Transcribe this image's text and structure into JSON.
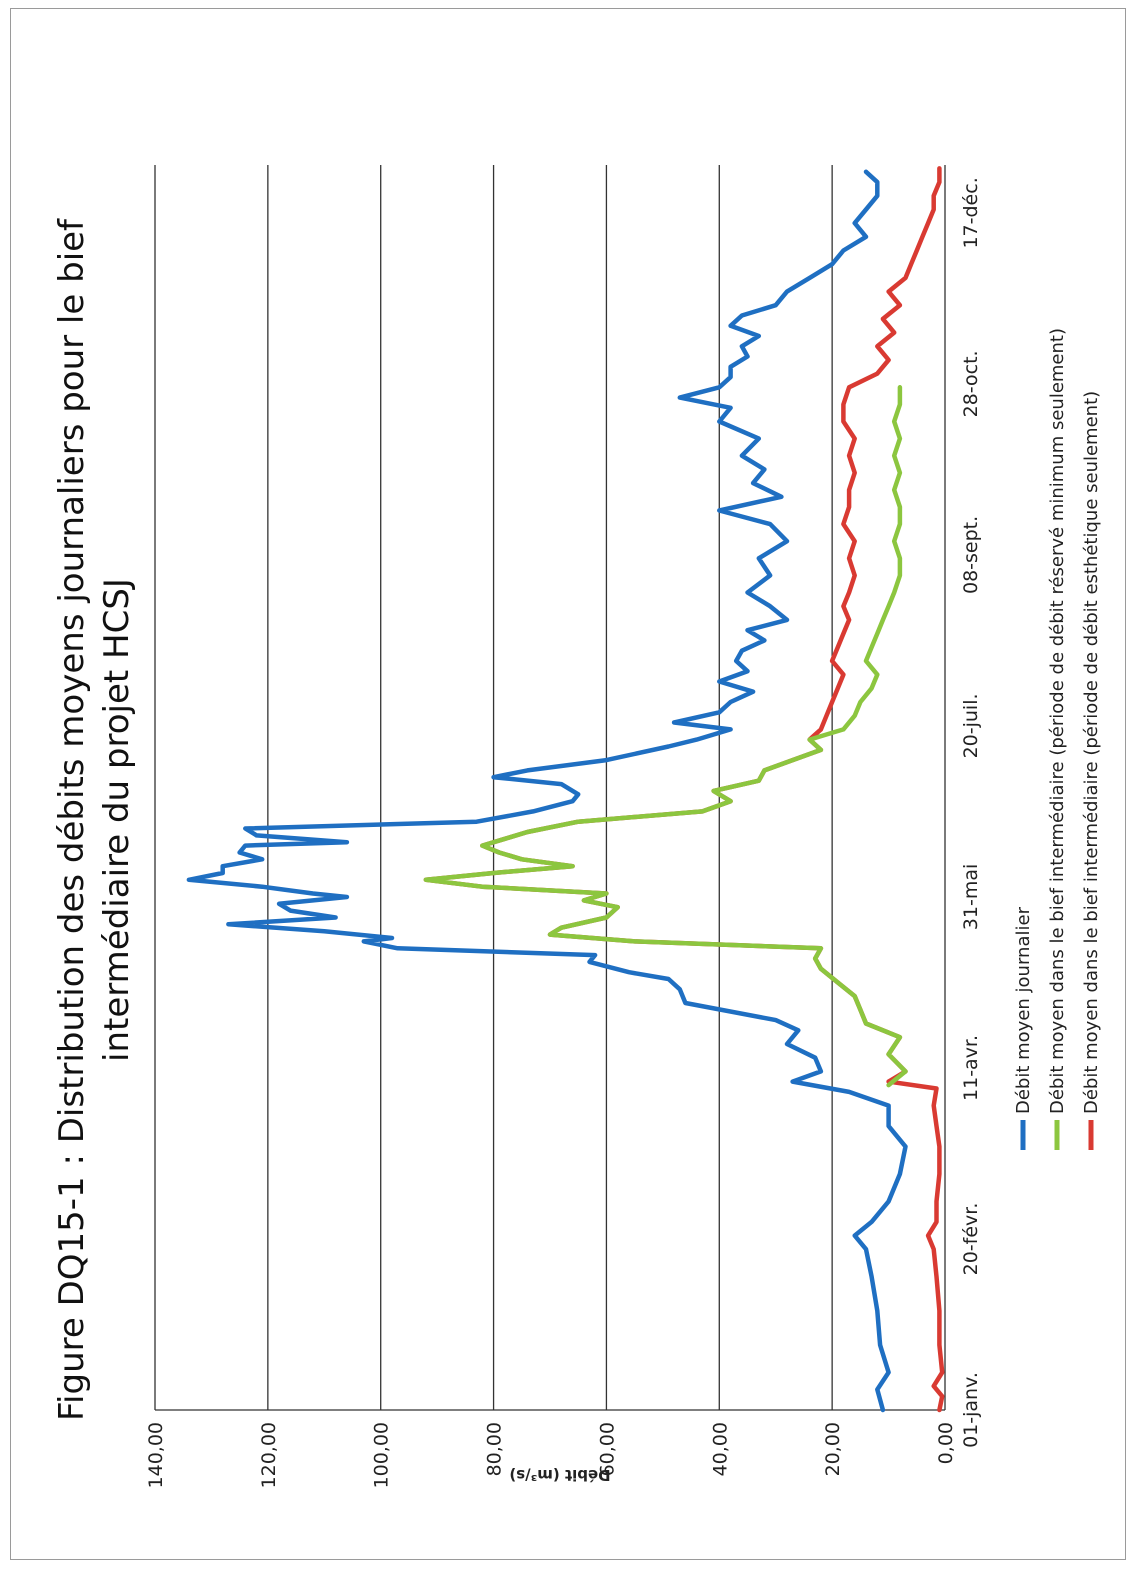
{
  "chart_data": {
    "type": "line",
    "title_lines": [
      "Figure DQ15-1 : Distribution des débits moyens journaliers pour le bief",
      "intermédiaire du projet HCSJ"
    ],
    "ylabel": "Débit (m³/s)",
    "xlabel": "",
    "ylim": [
      0,
      140
    ],
    "ytick_labels": [
      "0,00",
      "20,00",
      "40,00",
      "60,00",
      "80,00",
      "100,00",
      "120,00",
      "140,00"
    ],
    "ytick_values": [
      0,
      20,
      40,
      60,
      80,
      100,
      120,
      140
    ],
    "xlim": [
      "01-janv.",
      "31-déc."
    ],
    "xtick_labels": [
      "01-janv.",
      "20-févr.",
      "11-avr.",
      "31-mai",
      "20-juil.",
      "08-sept.",
      "28-oct.",
      "17-déc."
    ],
    "xtick_days": [
      1,
      51,
      101,
      151,
      201,
      251,
      301,
      351
    ],
    "grid": "horizontal",
    "legend_position": "bottom",
    "series": [
      {
        "name": "Débit moyen journalier",
        "color": "#1f6fc2",
        "points": [
          [
            1,
            11
          ],
          [
            7,
            12
          ],
          [
            12,
            10
          ],
          [
            20,
            11.5
          ],
          [
            30,
            12
          ],
          [
            40,
            13
          ],
          [
            48,
            14
          ],
          [
            52,
            16
          ],
          [
            56,
            13
          ],
          [
            62,
            10
          ],
          [
            70,
            8
          ],
          [
            78,
            7
          ],
          [
            84,
            10
          ],
          [
            90,
            10
          ],
          [
            94,
            17
          ],
          [
            97,
            27
          ],
          [
            100,
            22
          ],
          [
            104,
            23
          ],
          [
            108,
            28
          ],
          [
            112,
            26
          ],
          [
            115,
            30
          ],
          [
            120,
            46
          ],
          [
            124,
            47
          ],
          [
            127,
            49
          ],
          [
            129,
            56
          ],
          [
            132,
            63
          ],
          [
            134,
            62
          ],
          [
            136,
            97
          ],
          [
            138,
            103
          ],
          [
            139,
            98
          ],
          [
            141,
            110
          ],
          [
            143,
            127
          ],
          [
            145,
            108
          ],
          [
            147,
            116
          ],
          [
            149,
            118
          ],
          [
            151,
            106
          ],
          [
            152,
            112
          ],
          [
            154,
            121
          ],
          [
            156,
            134
          ],
          [
            158,
            128
          ],
          [
            160,
            128
          ],
          [
            162,
            121
          ],
          [
            164,
            125
          ],
          [
            166,
            124
          ],
          [
            167,
            106
          ],
          [
            169,
            122
          ],
          [
            171,
            124
          ],
          [
            173,
            83
          ],
          [
            176,
            73
          ],
          [
            179,
            66
          ],
          [
            181,
            65
          ],
          [
            184,
            68
          ],
          [
            186,
            80
          ],
          [
            188,
            74
          ],
          [
            191,
            60
          ],
          [
            195,
            49
          ],
          [
            197,
            44
          ],
          [
            200,
            38
          ],
          [
            202,
            48
          ],
          [
            205,
            40
          ],
          [
            208,
            38
          ],
          [
            211,
            34
          ],
          [
            214,
            40
          ],
          [
            217,
            35
          ],
          [
            220,
            37
          ],
          [
            223,
            36
          ],
          [
            226,
            32
          ],
          [
            229,
            35
          ],
          [
            232,
            28
          ],
          [
            236,
            31
          ],
          [
            240,
            35
          ],
          [
            245,
            31
          ],
          [
            250,
            33
          ],
          [
            255,
            28
          ],
          [
            260,
            31
          ],
          [
            264,
            40
          ],
          [
            268,
            29
          ],
          [
            272,
            34
          ],
          [
            276,
            32
          ],
          [
            280,
            36
          ],
          [
            285,
            33
          ],
          [
            290,
            40
          ],
          [
            294,
            38
          ],
          [
            297,
            47
          ],
          [
            300,
            40
          ],
          [
            303,
            38
          ],
          [
            306,
            38
          ],
          [
            309,
            35
          ],
          [
            312,
            36
          ],
          [
            315,
            33
          ],
          [
            318,
            38
          ],
          [
            321,
            36
          ],
          [
            324,
            30
          ],
          [
            328,
            28
          ],
          [
            332,
            24
          ],
          [
            336,
            20
          ],
          [
            340,
            18
          ],
          [
            344,
            14
          ],
          [
            348,
            16
          ],
          [
            352,
            14
          ],
          [
            356,
            12
          ],
          [
            360,
            12
          ],
          [
            363,
            14
          ]
        ]
      },
      {
        "name": "Débit moyen dans le bief intermédiaire (période de débit réservé minimum seulement)",
        "color": "#8cc63f",
        "points": [
          [
            96,
            10
          ],
          [
            100,
            7
          ],
          [
            105,
            10
          ],
          [
            110,
            8
          ],
          [
            114,
            14
          ],
          [
            118,
            15
          ],
          [
            122,
            16
          ],
          [
            126,
            19
          ],
          [
            130,
            22
          ],
          [
            133,
            23
          ],
          [
            136,
            22
          ],
          [
            138,
            55
          ],
          [
            140,
            70
          ],
          [
            142,
            68
          ],
          [
            145,
            60
          ],
          [
            148,
            58
          ],
          [
            150,
            64
          ],
          [
            152,
            60
          ],
          [
            154,
            82
          ],
          [
            156,
            92
          ],
          [
            158,
            80
          ],
          [
            160,
            66
          ],
          [
            162,
            75
          ],
          [
            164,
            79
          ],
          [
            166,
            82
          ],
          [
            168,
            78
          ],
          [
            170,
            74
          ],
          [
            173,
            65
          ],
          [
            176,
            43
          ],
          [
            179,
            38
          ],
          [
            182,
            41
          ],
          [
            185,
            33
          ],
          [
            188,
            32
          ],
          [
            191,
            27
          ],
          [
            194,
            22
          ],
          [
            197,
            24
          ],
          [
            200,
            18
          ],
          [
            204,
            16
          ],
          [
            208,
            15
          ],
          [
            212,
            13
          ],
          [
            216,
            12
          ],
          [
            220,
            14
          ],
          [
            224,
            13
          ],
          [
            228,
            12
          ],
          [
            232,
            11
          ],
          [
            236,
            10
          ],
          [
            240,
            9
          ],
          [
            245,
            8
          ],
          [
            250,
            8
          ],
          [
            255,
            9
          ],
          [
            260,
            8
          ],
          [
            265,
            8
          ],
          [
            270,
            9
          ],
          [
            275,
            8
          ],
          [
            280,
            9
          ],
          [
            285,
            8
          ],
          [
            290,
            9
          ],
          [
            295,
            8
          ],
          [
            300,
            8
          ]
        ]
      },
      {
        "name": "Débit moyen dans le bief intermédiaire (période de débit esthétique seulement)",
        "color": "#d93a32",
        "points": [
          [
            1,
            1
          ],
          [
            5,
            0.5
          ],
          [
            8,
            2
          ],
          [
            12,
            0.5
          ],
          [
            20,
            1
          ],
          [
            30,
            1
          ],
          [
            40,
            1.5
          ],
          [
            48,
            2
          ],
          [
            52,
            3
          ],
          [
            56,
            1.5
          ],
          [
            62,
            1.5
          ],
          [
            70,
            1
          ],
          [
            78,
            1
          ],
          [
            84,
            1.5
          ],
          [
            90,
            2
          ],
          [
            95,
            1.5
          ],
          [
            97,
            10
          ],
          [
            100,
            7
          ],
          [
            105,
            10
          ],
          [
            110,
            8
          ],
          [
            114,
            14
          ],
          [
            118,
            15
          ],
          [
            122,
            16
          ],
          [
            126,
            19
          ],
          [
            130,
            22
          ],
          [
            133,
            23
          ],
          [
            136,
            22
          ],
          [
            138,
            55
          ],
          [
            140,
            70
          ],
          [
            142,
            68
          ],
          [
            145,
            60
          ],
          [
            148,
            58
          ],
          [
            150,
            64
          ],
          [
            152,
            60
          ],
          [
            154,
            82
          ],
          [
            156,
            92
          ],
          [
            158,
            80
          ],
          [
            160,
            66
          ],
          [
            162,
            75
          ],
          [
            164,
            79
          ],
          [
            166,
            82
          ],
          [
            168,
            78
          ],
          [
            170,
            74
          ],
          [
            173,
            65
          ],
          [
            176,
            43
          ],
          [
            179,
            38
          ],
          [
            182,
            41
          ],
          [
            185,
            33
          ],
          [
            188,
            32
          ],
          [
            191,
            27
          ],
          [
            194,
            22
          ],
          [
            197,
            24
          ],
          [
            200,
            22
          ],
          [
            204,
            21
          ],
          [
            208,
            20
          ],
          [
            212,
            19
          ],
          [
            216,
            18
          ],
          [
            220,
            20
          ],
          [
            224,
            19
          ],
          [
            228,
            18
          ],
          [
            232,
            17
          ],
          [
            236,
            18
          ],
          [
            240,
            17
          ],
          [
            245,
            16
          ],
          [
            250,
            17
          ],
          [
            255,
            16
          ],
          [
            260,
            18
          ],
          [
            265,
            17
          ],
          [
            270,
            17
          ],
          [
            275,
            16
          ],
          [
            280,
            17
          ],
          [
            285,
            16
          ],
          [
            290,
            18
          ],
          [
            295,
            18
          ],
          [
            300,
            17
          ],
          [
            304,
            12
          ],
          [
            308,
            10
          ],
          [
            312,
            12
          ],
          [
            316,
            9
          ],
          [
            320,
            11
          ],
          [
            324,
            8
          ],
          [
            328,
            10
          ],
          [
            332,
            7
          ],
          [
            336,
            6
          ],
          [
            340,
            5
          ],
          [
            344,
            4
          ],
          [
            348,
            3
          ],
          [
            352,
            2
          ],
          [
            356,
            2
          ],
          [
            360,
            1
          ],
          [
            364,
            1
          ]
        ]
      }
    ]
  }
}
